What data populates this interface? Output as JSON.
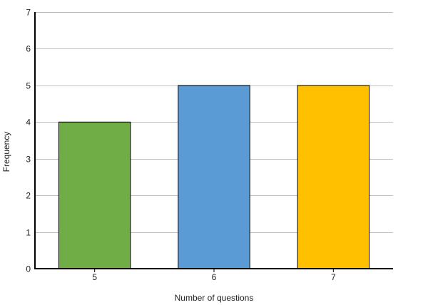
{
  "chart_data": {
    "type": "bar",
    "categories": [
      "5",
      "6",
      "7"
    ],
    "values": [
      4,
      5,
      5
    ],
    "bar_colors": [
      "#70AD47",
      "#5B9BD5",
      "#FFC000"
    ],
    "title": "",
    "xlabel": "Number of questions",
    "ylabel": "Frequency",
    "ylim": [
      0,
      7
    ],
    "yticks": [
      0,
      1,
      2,
      3,
      4,
      5,
      6,
      7
    ],
    "grid": true,
    "gridline_color": "#BFBFBF",
    "axis_color": "#000000",
    "bar_outline_color": "#000000"
  }
}
